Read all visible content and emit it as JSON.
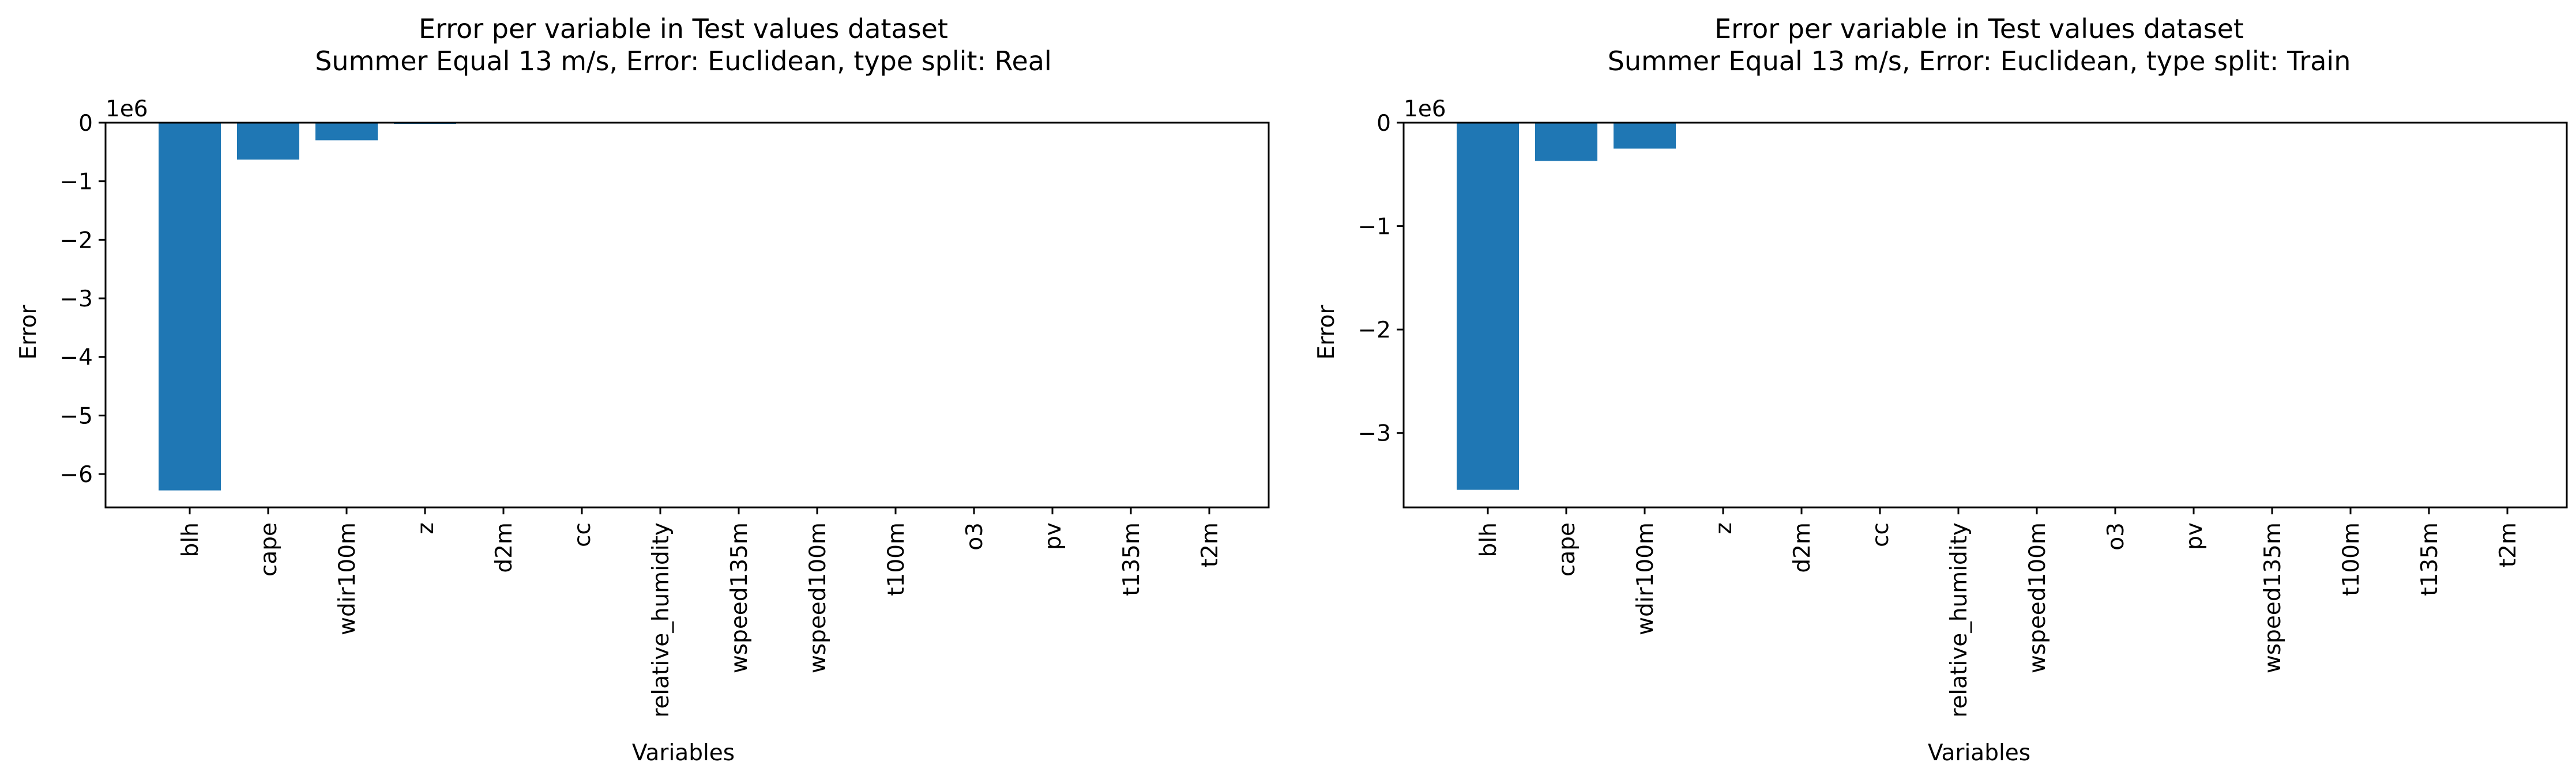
{
  "chart_data": [
    {
      "type": "bar",
      "title": "Error per variable in Test values dataset",
      "subtitle": "Summer Equal 13 m/s, Error: Euclidean, type split: Real",
      "xlabel": "Variables",
      "ylabel": "Error",
      "offset_label": "1e6",
      "ylim": [
        -6.57,
        0
      ],
      "yticks": [
        0,
        -1,
        -2,
        -3,
        -4,
        -5,
        -6
      ],
      "ytick_labels": [
        "0",
        "−1",
        "−2",
        "−3",
        "−4",
        "−5",
        "−6"
      ],
      "categories": [
        "blh",
        "cape",
        "wdir100m",
        "z",
        "d2m",
        "cc",
        "relative_humidity",
        "wspeed135m",
        "wspeed100m",
        "t100m",
        "o3",
        "pv",
        "t135m",
        "t2m"
      ],
      "values": [
        -6.28,
        -0.63,
        -0.3,
        -0.02,
        0,
        0,
        0,
        0,
        0,
        0,
        0,
        0,
        0,
        0
      ],
      "bar_color": "#1f77b4",
      "grid": false
    },
    {
      "type": "bar",
      "title": "Error per variable in Test values dataset",
      "subtitle": "Summer Equal 13 m/s, Error: Euclidean, type split: Train",
      "xlabel": "Variables",
      "ylabel": "Error",
      "offset_label": "1e6",
      "ylim": [
        -3.72,
        0
      ],
      "yticks": [
        0,
        -1,
        -2,
        -3
      ],
      "ytick_labels": [
        "0",
        "−1",
        "−2",
        "−3"
      ],
      "categories": [
        "blh",
        "cape",
        "wdir100m",
        "z",
        "d2m",
        "cc",
        "relative_humidity",
        "wspeed100m",
        "o3",
        "pv",
        "wspeed135m",
        "t100m",
        "t135m",
        "t2m"
      ],
      "values": [
        -3.55,
        -0.37,
        -0.25,
        0,
        0,
        0,
        0,
        0,
        0,
        0,
        0,
        0,
        0,
        0
      ],
      "bar_color": "#1f77b4",
      "grid": false
    }
  ]
}
